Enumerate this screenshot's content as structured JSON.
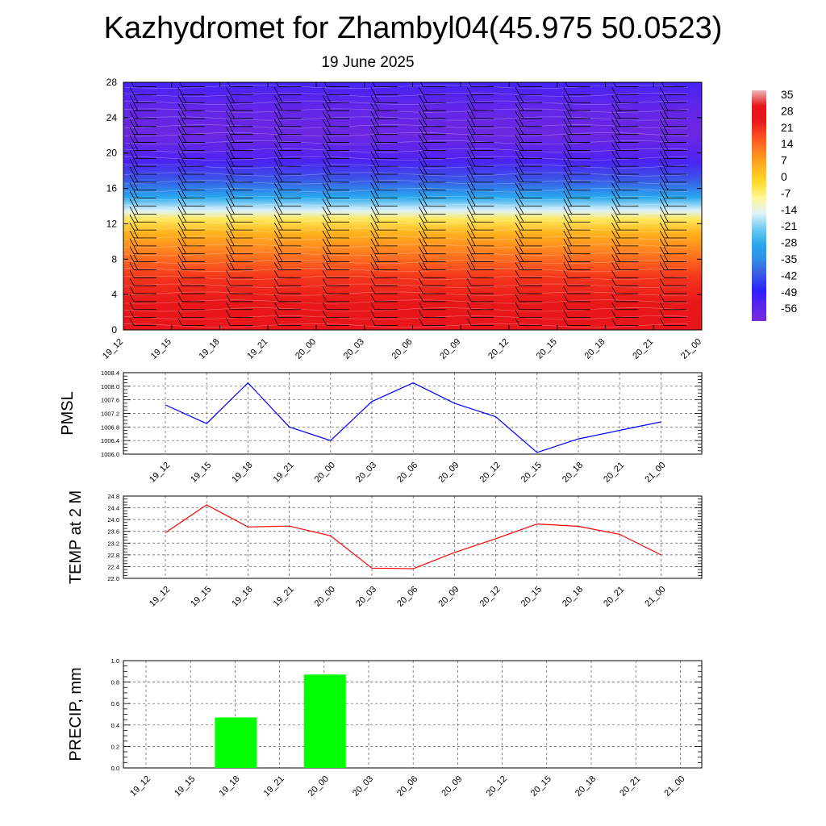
{
  "page": {
    "title": "Kazhydromet for Zhambyl04(45.975 50.0523)",
    "subtitle": "19 June 2025"
  },
  "chart_data": [
    {
      "type": "heatmap",
      "title": "Kazhydromet for Zhambyl04(45.975 50.0523)",
      "subtitle": "19 June 2025",
      "x_tick_labels": [
        "19_12",
        "19_15",
        "19_18",
        "19_21",
        "20_00",
        "20_03",
        "20_06",
        "20_09",
        "20_12",
        "20_15",
        "20_18",
        "20_21",
        "21_00"
      ],
      "y_ticks": [
        0,
        4,
        8,
        12,
        16,
        20,
        24,
        28
      ],
      "ylim": [
        0,
        28
      ],
      "colorbar_labels": [
        "35",
        "28",
        "21",
        "14",
        "7",
        "0",
        "-7",
        "-14",
        "-21",
        "-28",
        "-35",
        "-42",
        "-49",
        "-56"
      ],
      "colorbar_range": [
        -63,
        42
      ],
      "temperature_profile": [
        {
          "level": 0,
          "value": 35
        },
        {
          "level": 3,
          "value": 30
        },
        {
          "level": 6,
          "value": 24
        },
        {
          "level": 9,
          "value": 14
        },
        {
          "level": 11,
          "value": 7
        },
        {
          "level": 12.5,
          "value": -3
        },
        {
          "level": 13.5,
          "value": -14
        },
        {
          "level": 15,
          "value": -28
        },
        {
          "level": 17,
          "value": -42
        },
        {
          "level": 19,
          "value": -54
        },
        {
          "level": 22,
          "value": -60
        },
        {
          "level": 25,
          "value": -58
        },
        {
          "level": 28,
          "value": -53
        }
      ],
      "wind_barbs": "per level and time step, black"
    },
    {
      "type": "line",
      "ylabel": "PMSL",
      "categories": [
        "19_12",
        "19_15",
        "19_18",
        "19_21",
        "20_00",
        "20_03",
        "20_06",
        "20_09",
        "20_12",
        "20_15",
        "20_18",
        "20_21",
        "21_00"
      ],
      "series": [
        {
          "values": [
            1007.45,
            1006.9,
            1008.1,
            1006.8,
            1006.4,
            1007.55,
            1008.1,
            1007.5,
            1007.1,
            1006.05,
            1006.45,
            1006.7,
            1006.95
          ]
        }
      ],
      "ylim": [
        1006.0,
        1008.4
      ],
      "yticks": [
        "1006.0",
        "1006.4",
        "1006.8",
        "1007.2",
        "1007.6",
        "1008.0",
        "1008.4"
      ],
      "color": "#0000ff",
      "grid": true
    },
    {
      "type": "line",
      "ylabel": "TEMP at 2 M",
      "categories": [
        "19_12",
        "19_15",
        "19_18",
        "19_21",
        "20_00",
        "20_03",
        "20_06",
        "20_09",
        "20_12",
        "20_15",
        "20_18",
        "20_21",
        "21_00"
      ],
      "series": [
        {
          "values": [
            23.55,
            24.5,
            23.75,
            23.78,
            23.45,
            22.35,
            22.33,
            22.88,
            23.35,
            23.85,
            23.77,
            23.5,
            22.8
          ]
        }
      ],
      "ylim": [
        22.0,
        24.8
      ],
      "yticks": [
        "22.0",
        "22.4",
        "22.8",
        "23.2",
        "23.6",
        "24.0",
        "24.4",
        "24.8"
      ],
      "color": "#ff0000",
      "grid": true
    },
    {
      "type": "bar",
      "ylabel": "PRECIP, mm",
      "categories": [
        "19_12",
        "19_15",
        "19_18",
        "19_21",
        "20_00",
        "20_03",
        "20_06",
        "20_09",
        "20_12",
        "20_15",
        "20_18",
        "20_21",
        "21_00"
      ],
      "values": [
        0,
        0,
        0.47,
        0,
        0.87,
        0,
        0,
        0,
        0,
        0,
        0,
        0,
        0
      ],
      "ylim": [
        0,
        1.0
      ],
      "yticks": [
        "0.0",
        "0.2",
        "0.4",
        "0.6",
        "0.8",
        "1.0"
      ],
      "color": "#00ff00",
      "grid": true
    }
  ]
}
